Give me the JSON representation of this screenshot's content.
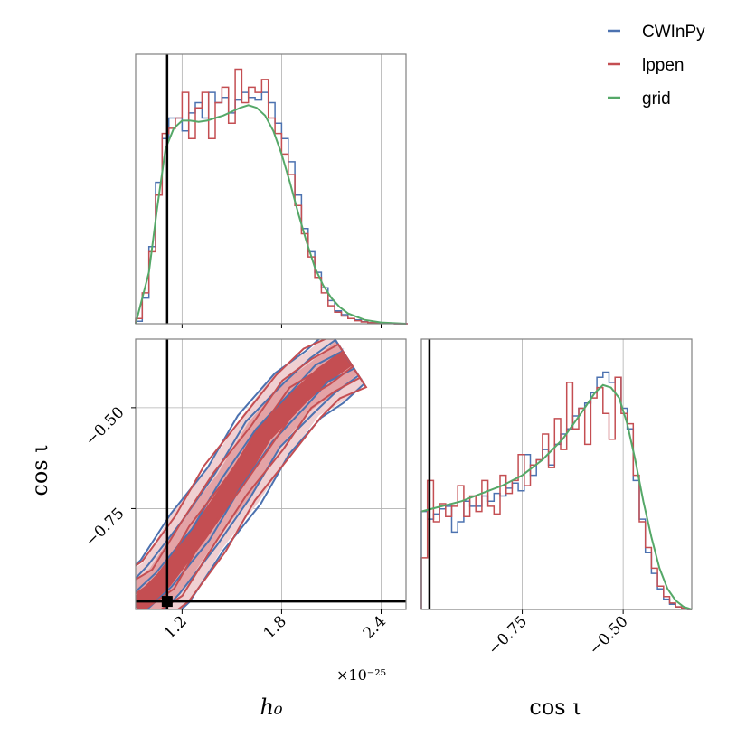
{
  "colors": {
    "cwinpy": "#4c72b0",
    "lppen": "#c44e52",
    "grid": "#55a868",
    "truth": "#000000",
    "frame": "#808080",
    "gridline": "#b0b0b0"
  },
  "legend": [
    {
      "label": "CWInPy",
      "color": "#4c72b0"
    },
    {
      "label": "lppen",
      "color": "#c44e52"
    },
    {
      "label": "grid",
      "color": "#55a868"
    }
  ],
  "axes": {
    "h0": {
      "label": "h₀",
      "offset_text": "×10⁻²⁵",
      "ticks": [
        1.2,
        1.8,
        2.4
      ],
      "tick_labels": [
        "1.2",
        "1.8",
        "2.4"
      ],
      "range": [
        0.92,
        2.55
      ]
    },
    "cosi": {
      "label": "cos ι",
      "ticks": [
        -0.75,
        -0.5
      ],
      "tick_labels": [
        "−0.75",
        "−0.50"
      ],
      "range": [
        -1.0,
        -0.33
      ]
    }
  },
  "truth": {
    "h0": 1.11,
    "cosi": -0.98
  },
  "chart_data": [
    {
      "type": "histogram",
      "panel": "h0 marginal",
      "xlabel": "",
      "ylabel": "",
      "bin_edges": [
        0.92,
        0.96,
        1.0,
        1.04,
        1.08,
        1.12,
        1.16,
        1.2,
        1.24,
        1.28,
        1.32,
        1.36,
        1.4,
        1.44,
        1.48,
        1.52,
        1.56,
        1.6,
        1.64,
        1.68,
        1.72,
        1.76,
        1.8,
        1.84,
        1.88,
        1.92,
        1.96,
        2.0,
        2.04,
        2.08,
        2.12,
        2.16,
        2.2,
        2.24,
        2.28,
        2.32,
        2.36,
        2.4,
        2.44,
        2.48,
        2.52,
        2.56
      ],
      "series": [
        {
          "name": "CWInPy",
          "density": [
            0.01,
            0.1,
            0.3,
            0.55,
            0.72,
            0.8,
            0.8,
            0.75,
            0.82,
            0.86,
            0.8,
            0.9,
            0.86,
            0.88,
            0.82,
            0.87,
            0.9,
            0.88,
            0.87,
            0.9,
            0.86,
            0.78,
            0.72,
            0.63,
            0.5,
            0.37,
            0.28,
            0.2,
            0.14,
            0.09,
            0.05,
            0.035,
            0.02,
            0.015,
            0.008,
            0.004,
            0.003,
            0.002,
            0.001,
            0.0,
            0.0
          ]
        },
        {
          "name": "lppen",
          "density": [
            0.02,
            0.12,
            0.28,
            0.5,
            0.74,
            0.76,
            0.8,
            0.9,
            0.72,
            0.84,
            0.9,
            0.72,
            0.86,
            0.92,
            0.78,
            0.99,
            0.86,
            0.92,
            0.9,
            0.95,
            0.8,
            0.74,
            0.66,
            0.58,
            0.46,
            0.35,
            0.26,
            0.18,
            0.12,
            0.07,
            0.045,
            0.03,
            0.02,
            0.012,
            0.007,
            0.004,
            0.003,
            0.002,
            0.001,
            0.0,
            0.0
          ]
        }
      ],
      "curve": {
        "name": "grid",
        "x": [
          0.92,
          1.0,
          1.05,
          1.1,
          1.15,
          1.2,
          1.25,
          1.3,
          1.35,
          1.4,
          1.45,
          1.5,
          1.55,
          1.6,
          1.65,
          1.7,
          1.75,
          1.8,
          1.85,
          1.9,
          1.95,
          2.0,
          2.05,
          2.1,
          2.15,
          2.2,
          2.3,
          2.4,
          2.55
        ],
        "y": [
          0.0,
          0.2,
          0.45,
          0.68,
          0.76,
          0.79,
          0.79,
          0.785,
          0.79,
          0.8,
          0.81,
          0.825,
          0.84,
          0.85,
          0.84,
          0.81,
          0.75,
          0.66,
          0.55,
          0.43,
          0.32,
          0.22,
          0.15,
          0.1,
          0.065,
          0.04,
          0.015,
          0.005,
          0.0
        ]
      }
    },
    {
      "type": "histogram",
      "panel": "cos ι marginal",
      "xlabel": "cos ι",
      "ylabel": "",
      "bin_edges": [
        -1.0,
        -0.985,
        -0.97,
        -0.955,
        -0.94,
        -0.925,
        -0.91,
        -0.895,
        -0.88,
        -0.865,
        -0.85,
        -0.835,
        -0.82,
        -0.805,
        -0.79,
        -0.775,
        -0.76,
        -0.745,
        -0.73,
        -0.715,
        -0.7,
        -0.685,
        -0.67,
        -0.655,
        -0.64,
        -0.625,
        -0.61,
        -0.595,
        -0.58,
        -0.565,
        -0.55,
        -0.535,
        -0.52,
        -0.505,
        -0.49,
        -0.475,
        -0.46,
        -0.445,
        -0.43,
        -0.415,
        -0.4,
        -0.385,
        -0.37,
        -0.355,
        -0.34,
        -0.33
      ],
      "series": [
        {
          "name": "CWInPy",
          "density": [
            0.38,
            0.35,
            0.37,
            0.39,
            0.4,
            0.3,
            0.34,
            0.42,
            0.4,
            0.4,
            0.44,
            0.42,
            0.45,
            0.44,
            0.47,
            0.49,
            0.46,
            0.6,
            0.52,
            0.58,
            0.62,
            0.56,
            0.64,
            0.68,
            0.7,
            0.75,
            0.78,
            0.8,
            0.84,
            0.9,
            0.92,
            0.88,
            0.9,
            0.78,
            0.7,
            0.5,
            0.35,
            0.22,
            0.14,
            0.08,
            0.04,
            0.02,
            0.01,
            0.005,
            0.0
          ]
        },
        {
          "name": "lppen",
          "density": [
            0.2,
            0.5,
            0.34,
            0.41,
            0.36,
            0.4,
            0.48,
            0.36,
            0.44,
            0.38,
            0.5,
            0.4,
            0.37,
            0.52,
            0.45,
            0.5,
            0.6,
            0.48,
            0.56,
            0.58,
            0.68,
            0.55,
            0.74,
            0.62,
            0.88,
            0.7,
            0.78,
            0.64,
            0.82,
            0.86,
            0.76,
            0.66,
            0.9,
            0.76,
            0.72,
            0.52,
            0.34,
            0.24,
            0.16,
            0.09,
            0.05,
            0.025,
            0.01,
            0.005,
            0.0
          ]
        }
      ],
      "curve": {
        "name": "grid",
        "x": [
          -1.0,
          -0.95,
          -0.9,
          -0.85,
          -0.8,
          -0.75,
          -0.7,
          -0.65,
          -0.6,
          -0.57,
          -0.55,
          -0.53,
          -0.51,
          -0.49,
          -0.47,
          -0.45,
          -0.43,
          -0.41,
          -0.39,
          -0.37,
          -0.35,
          -0.33
        ],
        "y": [
          0.38,
          0.4,
          0.42,
          0.45,
          0.48,
          0.52,
          0.58,
          0.66,
          0.77,
          0.84,
          0.87,
          0.86,
          0.82,
          0.72,
          0.58,
          0.42,
          0.28,
          0.16,
          0.08,
          0.035,
          0.01,
          0.0
        ]
      }
    },
    {
      "type": "contour",
      "panel": "joint h0 vs cos ι",
      "xlabel": "h₀",
      "ylabel": "cos ι",
      "levels": [
        "innermost",
        "middle",
        "outer"
      ],
      "series": [
        {
          "name": "CWInPy",
          "ridge": [
            [
              0.92,
              -0.99
            ],
            [
              1.1,
              -0.93
            ],
            [
              1.3,
              -0.81
            ],
            [
              1.5,
              -0.69
            ],
            [
              1.7,
              -0.57
            ],
            [
              1.9,
              -0.47
            ],
            [
              2.05,
              -0.42
            ],
            [
              2.2,
              -0.38
            ]
          ]
        },
        {
          "name": "lppen",
          "ridge": [
            [
              0.92,
              -0.99
            ],
            [
              1.1,
              -0.93
            ],
            [
              1.3,
              -0.81
            ],
            [
              1.5,
              -0.69
            ],
            [
              1.7,
              -0.57
            ],
            [
              1.9,
              -0.47
            ],
            [
              2.05,
              -0.42
            ],
            [
              2.2,
              -0.38
            ]
          ]
        }
      ]
    }
  ]
}
